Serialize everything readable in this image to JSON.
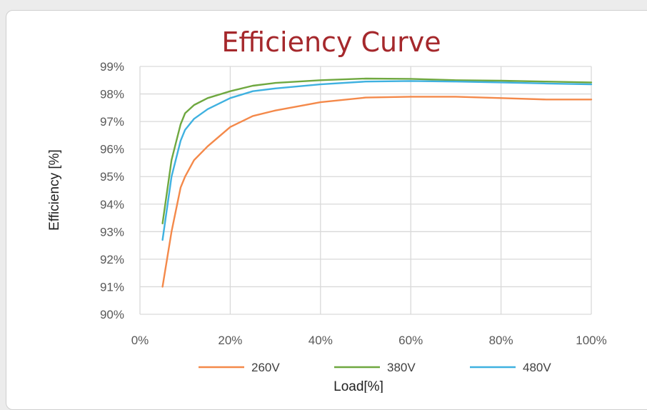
{
  "chart_data": {
    "type": "line",
    "title": "Efficiency Curve",
    "xlabel": "Load[%]",
    "ylabel": "Efficiency [%]",
    "xlim": [
      0,
      100
    ],
    "ylim": [
      90,
      99
    ],
    "x_ticks": [
      "0%",
      "20%",
      "40%",
      "60%",
      "80%",
      "100%"
    ],
    "y_ticks": [
      "90%",
      "91%",
      "92%",
      "93%",
      "94%",
      "95%",
      "96%",
      "97%",
      "98%",
      "99%"
    ],
    "grid": true,
    "legend_position": "bottom",
    "series": [
      {
        "name": "260V",
        "color": "#f4894a",
        "x": [
          5,
          7,
          9,
          10,
          12,
          15,
          20,
          25,
          30,
          40,
          50,
          60,
          70,
          80,
          90,
          100
        ],
        "y": [
          91.0,
          93.0,
          94.6,
          95.0,
          95.6,
          96.1,
          96.8,
          97.2,
          97.4,
          97.7,
          97.87,
          97.9,
          97.9,
          97.85,
          97.8,
          97.8
        ]
      },
      {
        "name": "380V",
        "color": "#6fa840",
        "x": [
          5,
          7,
          9,
          10,
          12,
          15,
          20,
          25,
          30,
          40,
          50,
          60,
          70,
          80,
          90,
          100
        ],
        "y": [
          93.3,
          95.6,
          96.9,
          97.3,
          97.6,
          97.85,
          98.1,
          98.3,
          98.4,
          98.5,
          98.56,
          98.55,
          98.5,
          98.48,
          98.45,
          98.42
        ]
      },
      {
        "name": "480V",
        "color": "#3fb1e0",
        "x": [
          5,
          7,
          9,
          10,
          12,
          15,
          20,
          25,
          30,
          40,
          50,
          60,
          70,
          80,
          90,
          100
        ],
        "y": [
          92.7,
          95.0,
          96.3,
          96.7,
          97.1,
          97.45,
          97.85,
          98.1,
          98.2,
          98.35,
          98.45,
          98.47,
          98.45,
          98.42,
          98.38,
          98.35
        ]
      }
    ]
  }
}
